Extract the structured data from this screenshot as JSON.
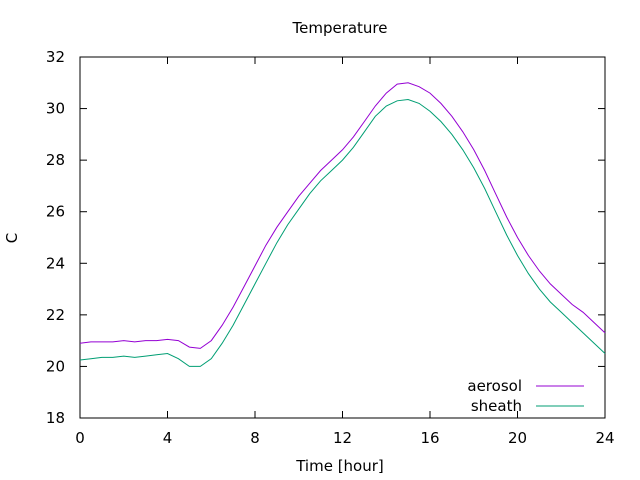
{
  "chart_data": {
    "type": "line",
    "title": "Temperature",
    "xlabel": "Time [hour]",
    "ylabel": "C",
    "xlim": [
      0,
      24
    ],
    "ylim": [
      18,
      32
    ],
    "xticks": [
      0,
      4,
      8,
      12,
      16,
      20,
      24
    ],
    "yticks": [
      18,
      20,
      22,
      24,
      26,
      28,
      30,
      32
    ],
    "grid": false,
    "legend_position": "bottom-right",
    "series": [
      {
        "name": "aerosol",
        "color": "#9400d3",
        "x": [
          0,
          0.5,
          1,
          1.5,
          2,
          2.5,
          3,
          3.5,
          4,
          4.5,
          5,
          5.5,
          6,
          6.5,
          7,
          7.5,
          8,
          8.5,
          9,
          9.5,
          10,
          10.5,
          11,
          11.5,
          12,
          12.5,
          13,
          13.5,
          14,
          14.5,
          15,
          15.5,
          16,
          16.5,
          17,
          17.5,
          18,
          18.5,
          19,
          19.5,
          20,
          20.5,
          21,
          21.5,
          22,
          22.5,
          23,
          23.5,
          24
        ],
        "y": [
          20.9,
          20.95,
          20.95,
          20.95,
          21.0,
          20.95,
          21.0,
          21.0,
          21.05,
          21.0,
          20.75,
          20.7,
          21.0,
          21.6,
          22.3,
          23.1,
          23.9,
          24.7,
          25.4,
          26.0,
          26.6,
          27.1,
          27.6,
          28.0,
          28.4,
          28.9,
          29.5,
          30.1,
          30.6,
          30.95,
          31.0,
          30.85,
          30.6,
          30.2,
          29.7,
          29.1,
          28.4,
          27.6,
          26.7,
          25.8,
          25.0,
          24.3,
          23.7,
          23.2,
          22.8,
          22.4,
          22.1,
          21.7,
          21.3
        ]
      },
      {
        "name": "sheath",
        "color": "#009e73",
        "x": [
          0,
          0.5,
          1,
          1.5,
          2,
          2.5,
          3,
          3.5,
          4,
          4.5,
          5,
          5.5,
          6,
          6.5,
          7,
          7.5,
          8,
          8.5,
          9,
          9.5,
          10,
          10.5,
          11,
          11.5,
          12,
          12.5,
          13,
          13.5,
          14,
          14.5,
          15,
          15.5,
          16,
          16.5,
          17,
          17.5,
          18,
          18.5,
          19,
          19.5,
          20,
          20.5,
          21,
          21.5,
          22,
          22.5,
          23,
          23.5,
          24
        ],
        "y": [
          20.25,
          20.3,
          20.35,
          20.35,
          20.4,
          20.35,
          20.4,
          20.45,
          20.5,
          20.3,
          20.0,
          20.0,
          20.3,
          20.9,
          21.6,
          22.4,
          23.2,
          24.0,
          24.8,
          25.5,
          26.1,
          26.7,
          27.2,
          27.6,
          28.0,
          28.5,
          29.1,
          29.7,
          30.1,
          30.3,
          30.35,
          30.2,
          29.9,
          29.5,
          29.0,
          28.4,
          27.7,
          26.9,
          26.0,
          25.1,
          24.3,
          23.6,
          23.0,
          22.5,
          22.1,
          21.7,
          21.3,
          20.9,
          20.5
        ]
      }
    ]
  }
}
